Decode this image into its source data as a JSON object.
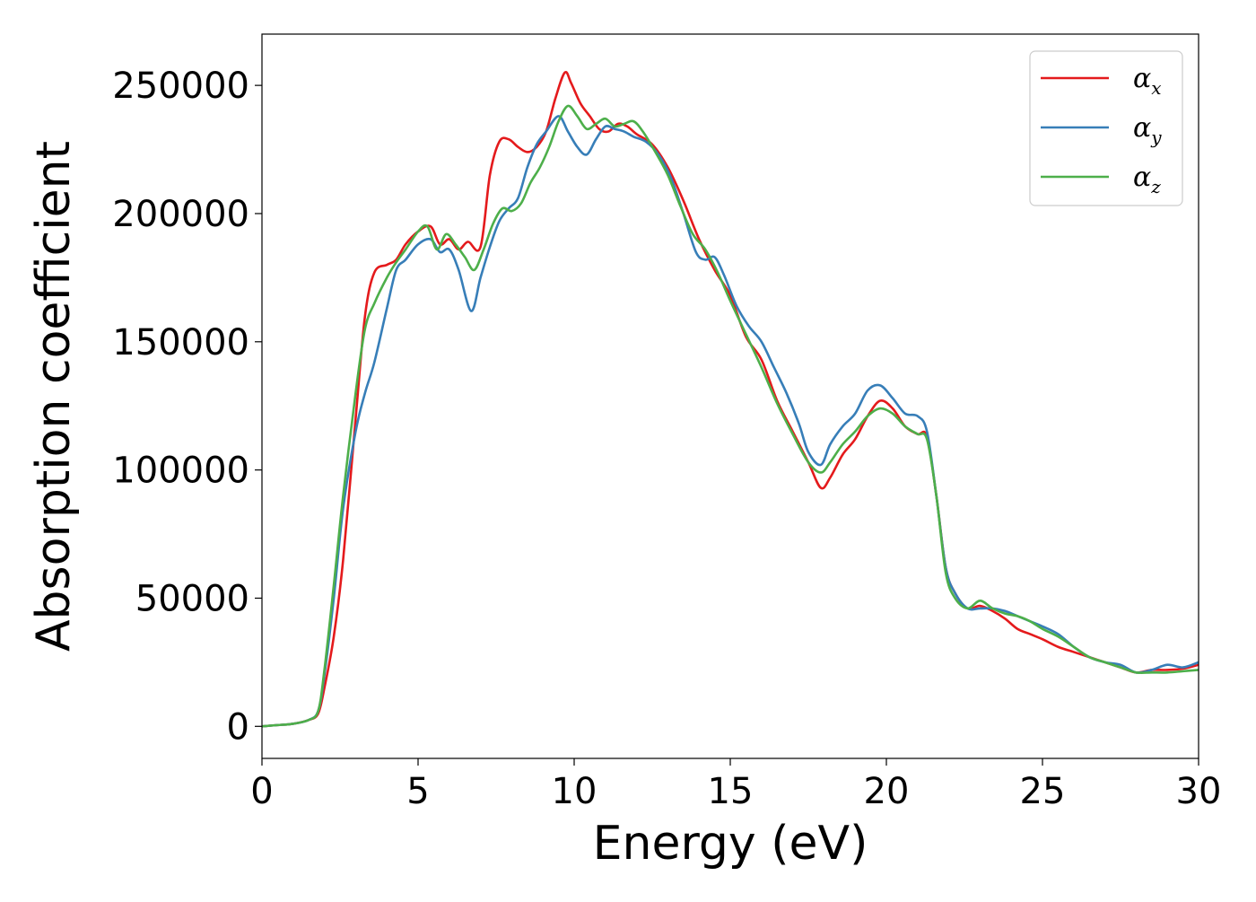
{
  "chart_data": {
    "type": "line",
    "title": "",
    "xlabel": "Energy (eV)",
    "ylabel": "Absorption coefficient",
    "xlim": [
      0,
      30
    ],
    "ylim": [
      -12500,
      270000
    ],
    "xticks": [
      0,
      5,
      10,
      15,
      20,
      25,
      30
    ],
    "xtick_labels": [
      "0",
      "5",
      "10",
      "15",
      "20",
      "25",
      "30"
    ],
    "yticks": [
      0,
      50000,
      100000,
      150000,
      200000,
      250000
    ],
    "ytick_labels": [
      "0",
      "50000",
      "100000",
      "150000",
      "200000",
      "250000"
    ],
    "grid": false,
    "legend_position": "top-right",
    "series": [
      {
        "name": "αx",
        "symbol": "α",
        "subscript": "x",
        "color": "#e41a1c",
        "x": [
          0,
          0.5,
          1,
          1.5,
          1.8,
          2,
          2.3,
          2.6,
          3,
          3.3,
          3.6,
          4,
          4.3,
          4.6,
          5,
          5.4,
          5.7,
          6,
          6.3,
          6.6,
          7,
          7.3,
          7.6,
          7.9,
          8.2,
          8.5,
          8.8,
          9.1,
          9.4,
          9.7,
          9.9,
          10.2,
          10.5,
          10.8,
          11.1,
          11.4,
          11.7,
          12,
          12.5,
          13,
          13.5,
          14,
          14.5,
          15,
          15.5,
          16,
          16.5,
          17,
          17.5,
          17.9,
          18.2,
          18.6,
          19,
          19.4,
          19.8,
          20.2,
          20.6,
          21,
          21.3,
          21.6,
          21.9,
          22.2,
          22.6,
          23,
          23.4,
          23.8,
          24.2,
          24.6,
          25,
          25.5,
          26,
          26.5,
          27,
          27.5,
          28,
          28.5,
          29,
          29.5,
          30
        ],
        "y": [
          0,
          500,
          1000,
          2500,
          5000,
          15000,
          35000,
          65000,
          120000,
          160000,
          177000,
          180000,
          182000,
          188000,
          193000,
          195000,
          188000,
          190000,
          186000,
          189000,
          187000,
          215000,
          228000,
          229000,
          226000,
          224000,
          226000,
          232000,
          245000,
          255000,
          251000,
          243000,
          238000,
          233000,
          232000,
          235000,
          234000,
          231000,
          227000,
          218000,
          205000,
          190000,
          178000,
          168000,
          152000,
          143000,
          127000,
          115000,
          103000,
          93000,
          97000,
          106000,
          112000,
          121000,
          127000,
          124000,
          117000,
          114000,
          113000,
          90000,
          62000,
          52000,
          46000,
          47000,
          45000,
          42000,
          38000,
          36000,
          34000,
          31000,
          29000,
          27000,
          25000,
          23000,
          21000,
          22000,
          22000,
          22500,
          24000
        ]
      },
      {
        "name": "αy",
        "symbol": "α",
        "subscript": "y",
        "color": "#377eb8",
        "x": [
          0,
          0.5,
          1,
          1.5,
          1.8,
          2,
          2.3,
          2.6,
          3,
          3.3,
          3.6,
          4,
          4.3,
          4.6,
          5,
          5.4,
          5.7,
          6,
          6.3,
          6.7,
          7,
          7.3,
          7.6,
          7.9,
          8.2,
          8.5,
          8.8,
          9.1,
          9.5,
          9.8,
          10.1,
          10.4,
          10.7,
          11,
          11.3,
          11.6,
          11.9,
          12.3,
          12.7,
          13.1,
          13.5,
          13.9,
          14.2,
          14.5,
          14.8,
          15.2,
          15.6,
          16,
          16.4,
          16.8,
          17.2,
          17.5,
          17.9,
          18.2,
          18.6,
          19,
          19.4,
          19.8,
          20.2,
          20.6,
          21,
          21.3,
          21.6,
          21.9,
          22.2,
          22.6,
          23,
          23.4,
          23.8,
          24.2,
          24.6,
          25,
          25.5,
          26,
          26.5,
          27,
          27.5,
          28,
          28.5,
          29,
          29.5,
          30
        ],
        "y": [
          0,
          500,
          1000,
          2500,
          6000,
          20000,
          50000,
          85000,
          115000,
          130000,
          142000,
          163000,
          178000,
          182000,
          188000,
          190000,
          185000,
          186000,
          178000,
          162000,
          175000,
          187000,
          197000,
          202000,
          206000,
          218000,
          227000,
          232000,
          238000,
          232000,
          226000,
          223000,
          229000,
          234000,
          233000,
          232000,
          230000,
          228000,
          223000,
          214000,
          200000,
          185000,
          182000,
          183000,
          176000,
          164000,
          156000,
          150000,
          140000,
          130000,
          118000,
          107000,
          102000,
          110000,
          117000,
          122000,
          131000,
          133000,
          128000,
          122000,
          121000,
          115000,
          90000,
          62000,
          52000,
          46000,
          46000,
          46000,
          45000,
          43000,
          41000,
          39000,
          36000,
          31000,
          27000,
          25000,
          24000,
          21000,
          22000,
          24000,
          23000,
          25000
        ]
      },
      {
        "name": "αz",
        "symbol": "α",
        "subscript": "z",
        "color": "#4daf4a",
        "x": [
          0,
          0.5,
          1,
          1.5,
          1.8,
          2,
          2.3,
          2.6,
          3,
          3.3,
          3.6,
          4,
          4.3,
          4.6,
          5,
          5.3,
          5.6,
          5.9,
          6.2,
          6.5,
          6.8,
          7.1,
          7.4,
          7.7,
          8,
          8.3,
          8.6,
          8.9,
          9.2,
          9.5,
          9.8,
          10.1,
          10.4,
          10.7,
          11,
          11.3,
          11.6,
          11.9,
          12.2,
          12.6,
          13,
          13.4,
          13.8,
          14.2,
          14.6,
          15,
          15.5,
          16,
          16.5,
          17,
          17.5,
          17.9,
          18.2,
          18.6,
          19,
          19.4,
          19.8,
          20.2,
          20.6,
          21,
          21.3,
          21.6,
          21.9,
          22.2,
          22.6,
          23,
          23.4,
          23.8,
          24.2,
          24.6,
          25,
          25.5,
          26,
          26.5,
          27,
          27.5,
          28,
          28.5,
          29,
          29.5,
          30
        ],
        "y": [
          0,
          500,
          1000,
          2500,
          6000,
          22000,
          55000,
          90000,
          130000,
          155000,
          165000,
          175000,
          181000,
          186000,
          193000,
          195000,
          186000,
          192000,
          188000,
          183000,
          178000,
          186000,
          196000,
          202000,
          201000,
          204000,
          212000,
          218000,
          226000,
          236000,
          242000,
          238000,
          233000,
          235000,
          237000,
          234000,
          235000,
          236000,
          232000,
          224000,
          215000,
          203000,
          192000,
          186000,
          177000,
          166000,
          153000,
          140000,
          126000,
          114000,
          103000,
          99000,
          103000,
          110000,
          115000,
          121000,
          124000,
          122000,
          117000,
          114000,
          112000,
          90000,
          60000,
          50000,
          46000,
          49000,
          46000,
          44000,
          43000,
          41000,
          38000,
          35000,
          31000,
          27000,
          25000,
          23000,
          21000,
          21000,
          21000,
          21500,
          22000
        ]
      }
    ]
  }
}
